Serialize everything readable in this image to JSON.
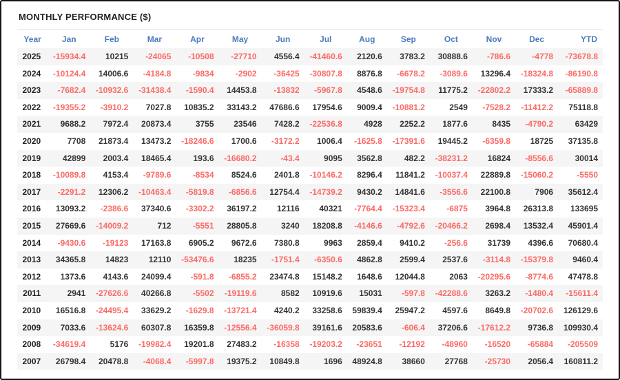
{
  "title": "MONTHLY PERFORMANCE ($)",
  "colors": {
    "header_blue": "#4a7cbd",
    "negative_red": "#fb6a66",
    "positive_dark": "#333333",
    "stripe": "#f5f5f5"
  },
  "table": {
    "columns": [
      "Year",
      "Jan",
      "Feb",
      "Mar",
      "Apr",
      "May",
      "Jun",
      "Jul",
      "Aug",
      "Sep",
      "Oct",
      "Nov",
      "Dec",
      "YTD"
    ],
    "rows": [
      {
        "year": "2025",
        "values": [
          "-15934.4",
          "10215",
          "-24065",
          "-10508",
          "-27710",
          "4556.4",
          "-41460.6",
          "2120.6",
          "3783.2",
          "30888.6",
          "-786.6",
          "-4778",
          "-73678.8"
        ]
      },
      {
        "year": "2024",
        "values": [
          "-10124.4",
          "14006.6",
          "-4184.8",
          "-9834",
          "-2902",
          "-36425",
          "-30807.8",
          "8876.8",
          "-6678.2",
          "-3089.6",
          "13296.4",
          "-18324.8",
          "-86190.8"
        ]
      },
      {
        "year": "2023",
        "values": [
          "-7682.4",
          "-10932.6",
          "-31438.4",
          "-1590.4",
          "14453.8",
          "-13832",
          "-5967.8",
          "4548.6",
          "-19754.8",
          "11775.2",
          "-22802.2",
          "17333.2",
          "-65889.8"
        ]
      },
      {
        "year": "2022",
        "values": [
          "-19355.2",
          "-3910.2",
          "7027.8",
          "10835.2",
          "33143.2",
          "47686.6",
          "17954.6",
          "9009.4",
          "-10881.2",
          "2549",
          "-7528.2",
          "-11412.2",
          "75118.8"
        ]
      },
      {
        "year": "2021",
        "values": [
          "9688.2",
          "7972.4",
          "20873.4",
          "3755",
          "23546",
          "7428.2",
          "-22536.8",
          "4928",
          "2252.2",
          "1877.6",
          "8435",
          "-4790.2",
          "63429"
        ]
      },
      {
        "year": "2020",
        "values": [
          "7708",
          "21873.4",
          "13473.2",
          "-18246.6",
          "1700.6",
          "-3172.2",
          "1006.4",
          "-1625.8",
          "-17391.6",
          "19445.2",
          "-6359.8",
          "18725",
          "37135.8"
        ]
      },
      {
        "year": "2019",
        "values": [
          "42899",
          "2003.4",
          "18465.4",
          "193.6",
          "-16680.2",
          "-43.4",
          "9095",
          "3562.8",
          "482.2",
          "-38231.2",
          "16824",
          "-8556.6",
          "30014"
        ]
      },
      {
        "year": "2018",
        "values": [
          "-10089.8",
          "4153.4",
          "-9789.6",
          "-8534",
          "8524.6",
          "2401.8",
          "-10146.2",
          "8296.4",
          "11841.2",
          "-10037.4",
          "22889.8",
          "-15060.2",
          "-5550"
        ]
      },
      {
        "year": "2017",
        "values": [
          "-2291.2",
          "12306.2",
          "-10463.4",
          "-5819.8",
          "-6856.6",
          "12754.4",
          "-14739.2",
          "9430.2",
          "14841.6",
          "-3556.6",
          "22100.8",
          "7906",
          "35612.4"
        ]
      },
      {
        "year": "2016",
        "values": [
          "13093.2",
          "-2386.6",
          "37340.6",
          "-3302.2",
          "36197.2",
          "12116",
          "40321",
          "-7764.4",
          "-15323.4",
          "-6875",
          "3964.8",
          "26313.8",
          "133695"
        ]
      },
      {
        "year": "2015",
        "values": [
          "27669.6",
          "-14009.2",
          "712",
          "-5551",
          "28805.8",
          "3240",
          "18208.8",
          "-4146.6",
          "-4792.6",
          "-20466.2",
          "2698.4",
          "13532.4",
          "45901.4"
        ]
      },
      {
        "year": "2014",
        "values": [
          "-9430.6",
          "-19123",
          "17163.8",
          "6905.2",
          "9672.6",
          "7380.8",
          "9963",
          "2859.4",
          "9410.2",
          "-256.6",
          "31739",
          "4396.6",
          "70680.4"
        ]
      },
      {
        "year": "2013",
        "values": [
          "34365.8",
          "14823",
          "12110",
          "-53476.6",
          "18235",
          "-1751.4",
          "-6350.6",
          "4862.8",
          "2599.4",
          "2537.6",
          "-3114.8",
          "-15379.8",
          "9460.4"
        ]
      },
      {
        "year": "2012",
        "values": [
          "1373.6",
          "4143.6",
          "24099.4",
          "-591.8",
          "-6855.2",
          "23474.8",
          "15148.2",
          "1648.6",
          "12044.8",
          "2063",
          "-20295.6",
          "-8774.6",
          "47478.8"
        ]
      },
      {
        "year": "2011",
        "values": [
          "2941",
          "-27626.6",
          "40266.8",
          "-5502",
          "-19119.6",
          "8582",
          "10919.6",
          "15031",
          "-597.8",
          "-42288.6",
          "3263.2",
          "-1480.4",
          "-15611.4"
        ]
      },
      {
        "year": "2010",
        "values": [
          "16516.8",
          "-24495.4",
          "33629.2",
          "-1629.8",
          "-13721.4",
          "4240.2",
          "33258.6",
          "59839.4",
          "25947.2",
          "4597.6",
          "8649.8",
          "-20702.6",
          "126129.6"
        ]
      },
      {
        "year": "2009",
        "values": [
          "7033.6",
          "-13624.6",
          "60307.8",
          "16359.8",
          "-12556.4",
          "-36059.8",
          "39161.6",
          "20583.6",
          "-606.4",
          "37206.6",
          "-17612.2",
          "9736.8",
          "109930.4"
        ]
      },
      {
        "year": "2008",
        "values": [
          "-34619.4",
          "5176",
          "-19982.4",
          "19201.8",
          "27483.2",
          "-16358",
          "-19203.2",
          "-23651",
          "-12192",
          "-48960",
          "-16520",
          "-65884",
          "-205509"
        ]
      },
      {
        "year": "2007",
        "values": [
          "26798.4",
          "20478.8",
          "-4068.4",
          "-5997.8",
          "19375.2",
          "10849.8",
          "1696",
          "48924.8",
          "38660",
          "27768",
          "-25730",
          "2056.4",
          "160811.2"
        ]
      }
    ]
  },
  "chart_data": {
    "type": "table",
    "title": "MONTHLY PERFORMANCE ($)",
    "columns": [
      "Year",
      "Jan",
      "Feb",
      "Mar",
      "Apr",
      "May",
      "Jun",
      "Jul",
      "Aug",
      "Sep",
      "Oct",
      "Nov",
      "Dec",
      "YTD"
    ],
    "rows": [
      [
        2025,
        -15934.4,
        10215,
        -24065,
        -10508,
        -27710,
        4556.4,
        -41460.6,
        2120.6,
        3783.2,
        30888.6,
        -786.6,
        -4778,
        -73678.8
      ],
      [
        2024,
        -10124.4,
        14006.6,
        -4184.8,
        -9834,
        -2902,
        -36425,
        -30807.8,
        8876.8,
        -6678.2,
        -3089.6,
        13296.4,
        -18324.8,
        -86190.8
      ],
      [
        2023,
        -7682.4,
        -10932.6,
        -31438.4,
        -1590.4,
        14453.8,
        -13832,
        -5967.8,
        4548.6,
        -19754.8,
        11775.2,
        -22802.2,
        17333.2,
        -65889.8
      ],
      [
        2022,
        -19355.2,
        -3910.2,
        7027.8,
        10835.2,
        33143.2,
        47686.6,
        17954.6,
        9009.4,
        -10881.2,
        2549,
        -7528.2,
        -11412.2,
        75118.8
      ],
      [
        2021,
        9688.2,
        7972.4,
        20873.4,
        3755,
        23546,
        7428.2,
        -22536.8,
        4928,
        2252.2,
        1877.6,
        8435,
        -4790.2,
        63429
      ],
      [
        2020,
        7708,
        21873.4,
        13473.2,
        -18246.6,
        1700.6,
        -3172.2,
        1006.4,
        -1625.8,
        -17391.6,
        19445.2,
        -6359.8,
        18725,
        37135.8
      ],
      [
        2019,
        42899,
        2003.4,
        18465.4,
        193.6,
        -16680.2,
        -43.4,
        9095,
        3562.8,
        482.2,
        -38231.2,
        16824,
        -8556.6,
        30014
      ],
      [
        2018,
        -10089.8,
        4153.4,
        -9789.6,
        -8534,
        8524.6,
        2401.8,
        -10146.2,
        8296.4,
        11841.2,
        -10037.4,
        22889.8,
        -15060.2,
        -5550
      ],
      [
        2017,
        -2291.2,
        12306.2,
        -10463.4,
        -5819.8,
        -6856.6,
        12754.4,
        -14739.2,
        9430.2,
        14841.6,
        -3556.6,
        22100.8,
        7906,
        35612.4
      ],
      [
        2016,
        13093.2,
        -2386.6,
        37340.6,
        -3302.2,
        36197.2,
        12116,
        40321,
        -7764.4,
        -15323.4,
        -6875,
        3964.8,
        26313.8,
        133695
      ],
      [
        2015,
        27669.6,
        -14009.2,
        712,
        -5551,
        28805.8,
        3240,
        18208.8,
        -4146.6,
        -4792.6,
        -20466.2,
        2698.4,
        13532.4,
        45901.4
      ],
      [
        2014,
        -9430.6,
        -19123,
        17163.8,
        6905.2,
        9672.6,
        7380.8,
        9963,
        2859.4,
        9410.2,
        -256.6,
        31739,
        4396.6,
        70680.4
      ],
      [
        2013,
        34365.8,
        14823,
        12110,
        -53476.6,
        18235,
        -1751.4,
        -6350.6,
        4862.8,
        2599.4,
        2537.6,
        -3114.8,
        -15379.8,
        9460.4
      ],
      [
        2012,
        1373.6,
        4143.6,
        24099.4,
        -591.8,
        -6855.2,
        23474.8,
        15148.2,
        1648.6,
        12044.8,
        2063,
        -20295.6,
        -8774.6,
        47478.8
      ],
      [
        2011,
        2941,
        -27626.6,
        40266.8,
        -5502,
        -19119.6,
        8582,
        10919.6,
        15031,
        -597.8,
        -42288.6,
        3263.2,
        -1480.4,
        -15611.4
      ],
      [
        2010,
        16516.8,
        -24495.4,
        33629.2,
        -1629.8,
        -13721.4,
        4240.2,
        33258.6,
        59839.4,
        25947.2,
        4597.6,
        8649.8,
        -20702.6,
        126129.6
      ],
      [
        2009,
        7033.6,
        -13624.6,
        60307.8,
        16359.8,
        -12556.4,
        -36059.8,
        39161.6,
        20583.6,
        -606.4,
        37206.6,
        -17612.2,
        9736.8,
        109930.4
      ],
      [
        2008,
        -34619.4,
        5176,
        -19982.4,
        19201.8,
        27483.2,
        -16358,
        -19203.2,
        -23651,
        -12192,
        -48960,
        -16520,
        -65884,
        -205509
      ],
      [
        2007,
        26798.4,
        20478.8,
        -4068.4,
        -5997.8,
        19375.2,
        10849.8,
        1696,
        48924.8,
        38660,
        27768,
        -25730,
        2056.4,
        160811.2
      ]
    ],
    "value_color_rule": "negative values rendered red, positive/zero rendered dark gray"
  }
}
